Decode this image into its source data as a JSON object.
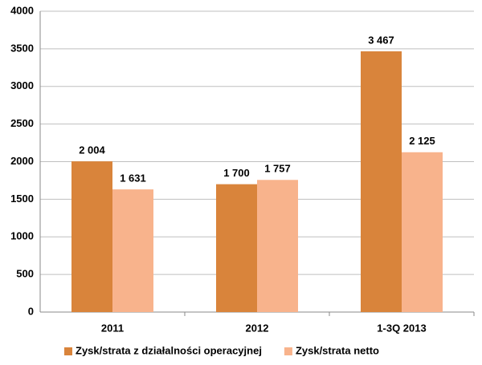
{
  "chart_data": {
    "type": "bar",
    "categories": [
      "2011",
      "2012",
      "1-3Q 2013"
    ],
    "series": [
      {
        "name": "Zysk/strata z działalności operacyjnej",
        "color": "#d9843b",
        "values": [
          2004,
          1700,
          3467
        ],
        "value_labels": [
          "2 004",
          "1 700",
          "3 467"
        ]
      },
      {
        "name": "Zysk/strata netto",
        "color": "#f8b38c",
        "values": [
          1631,
          1757,
          2125
        ],
        "value_labels": [
          "1 631",
          "1 757",
          "2 125"
        ]
      }
    ],
    "ylim": [
      0,
      4000
    ],
    "yticks": [
      0,
      500,
      1000,
      1500,
      2000,
      2500,
      3000,
      3500,
      4000
    ],
    "grid": true,
    "legend": "bottom"
  }
}
